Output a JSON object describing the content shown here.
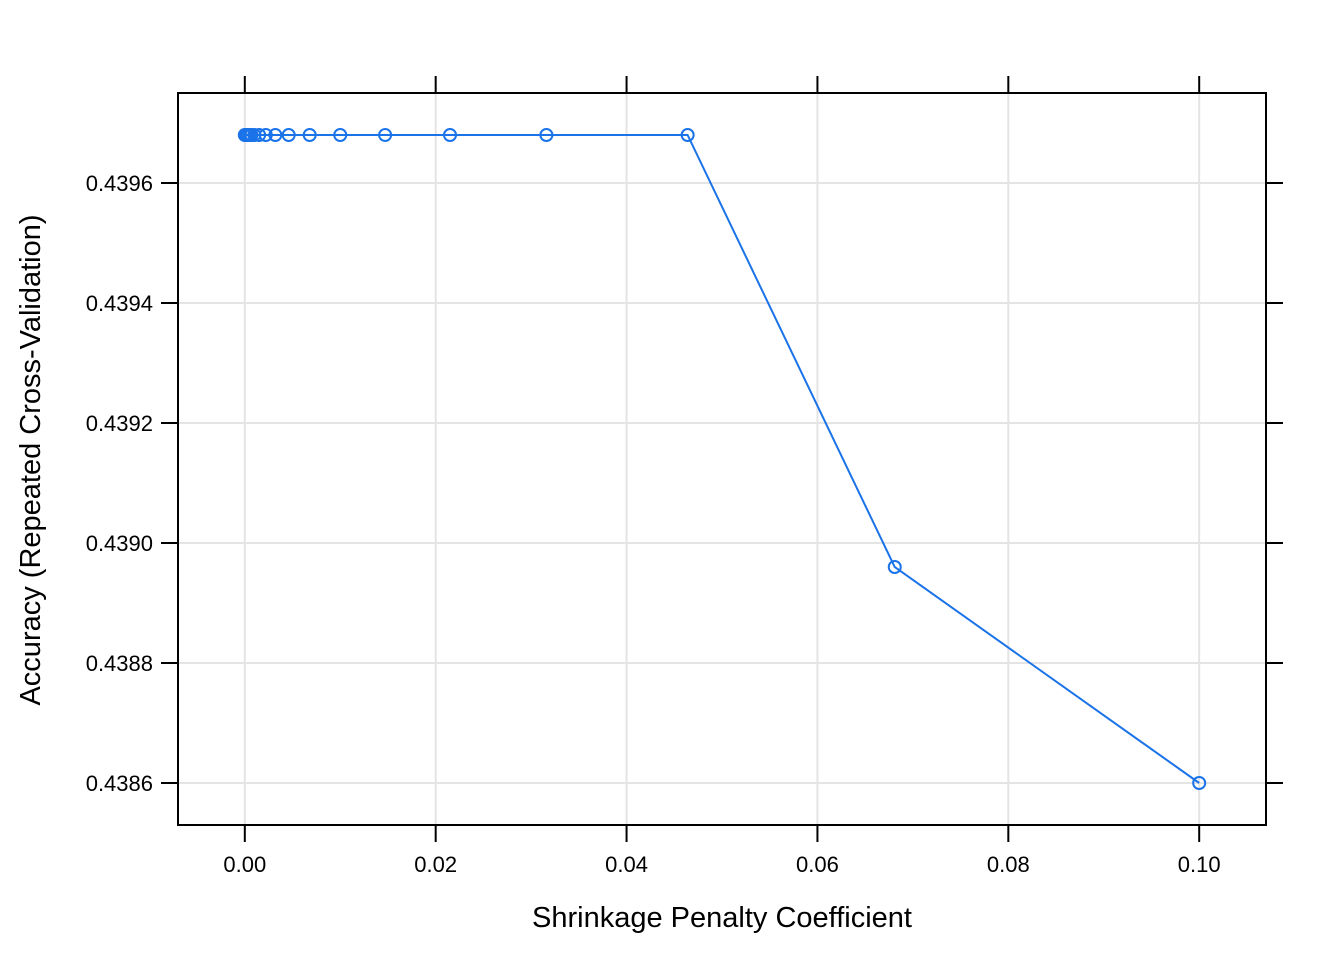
{
  "chart_data": {
    "type": "line",
    "title": "",
    "xlabel": "Shrinkage Penalty Coefficient",
    "ylabel": "Accuracy (Repeated Cross-Validation)",
    "xlim": [
      -0.007,
      0.107
    ],
    "ylim": [
      0.43853,
      0.43975
    ],
    "x_ticks": [
      0.0,
      0.02,
      0.04,
      0.06,
      0.08,
      0.1
    ],
    "x_tick_labels": [
      "0.00",
      "0.02",
      "0.04",
      "0.06",
      "0.08",
      "0.10"
    ],
    "y_ticks": [
      0.4386,
      0.4388,
      0.439,
      0.4392,
      0.4394,
      0.4396
    ],
    "y_tick_labels": [
      "0.4386",
      "0.4388",
      "0.4390",
      "0.4392",
      "0.4394",
      "0.4396"
    ],
    "grid": true,
    "marker": "open-circle",
    "series": [
      {
        "color": "#1a73e8",
        "x": [
          0.0,
          0.0001,
          0.0002,
          0.0003,
          0.0005,
          0.0007,
          0.001,
          0.0015,
          0.0022,
          0.0032,
          0.0046,
          0.0068,
          0.01,
          0.0147,
          0.0215,
          0.0316,
          0.0464,
          0.0681,
          0.1
        ],
        "y": [
          0.43968,
          0.43968,
          0.43968,
          0.43968,
          0.43968,
          0.43968,
          0.43968,
          0.43968,
          0.43968,
          0.43968,
          0.43968,
          0.43968,
          0.43968,
          0.43968,
          0.43968,
          0.43968,
          0.43968,
          0.43896,
          0.4386
        ]
      }
    ]
  }
}
